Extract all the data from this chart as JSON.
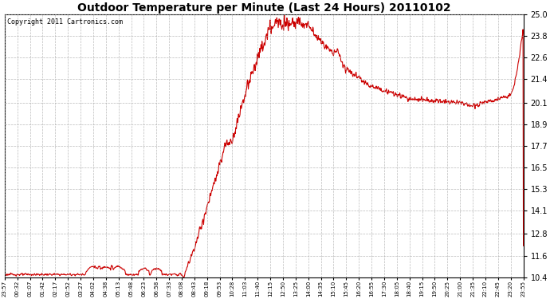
{
  "title": "Outdoor Temperature per Minute (Last 24 Hours) 20110102",
  "copyright_text": "Copyright 2011 Cartronics.com",
  "line_color": "#cc0000",
  "background_color": "#ffffff",
  "plot_bg_color": "#ffffff",
  "grid_color": "#aaaaaa",
  "yticks": [
    10.4,
    11.6,
    12.8,
    14.1,
    15.3,
    16.5,
    17.7,
    18.9,
    20.1,
    21.4,
    22.6,
    23.8,
    25.0
  ],
  "ylim": [
    10.4,
    25.0
  ],
  "xtick_labels": [
    "23:57",
    "00:32",
    "01:07",
    "01:42",
    "02:17",
    "02:52",
    "03:27",
    "04:02",
    "04:38",
    "05:13",
    "05:48",
    "06:23",
    "06:58",
    "07:33",
    "08:08",
    "08:43",
    "09:18",
    "09:53",
    "10:28",
    "11:03",
    "11:40",
    "12:15",
    "12:50",
    "13:25",
    "14:00",
    "14:35",
    "15:10",
    "15:45",
    "16:20",
    "16:55",
    "17:30",
    "18:05",
    "18:40",
    "19:15",
    "19:50",
    "20:25",
    "21:00",
    "21:35",
    "22:10",
    "22:45",
    "23:20",
    "23:55"
  ],
  "line_width": 0.8,
  "figsize": [
    6.9,
    3.75
  ],
  "dpi": 100,
  "title_fontsize": 10,
  "ytick_fontsize": 7,
  "xtick_fontsize": 5,
  "copyright_fontsize": 6
}
